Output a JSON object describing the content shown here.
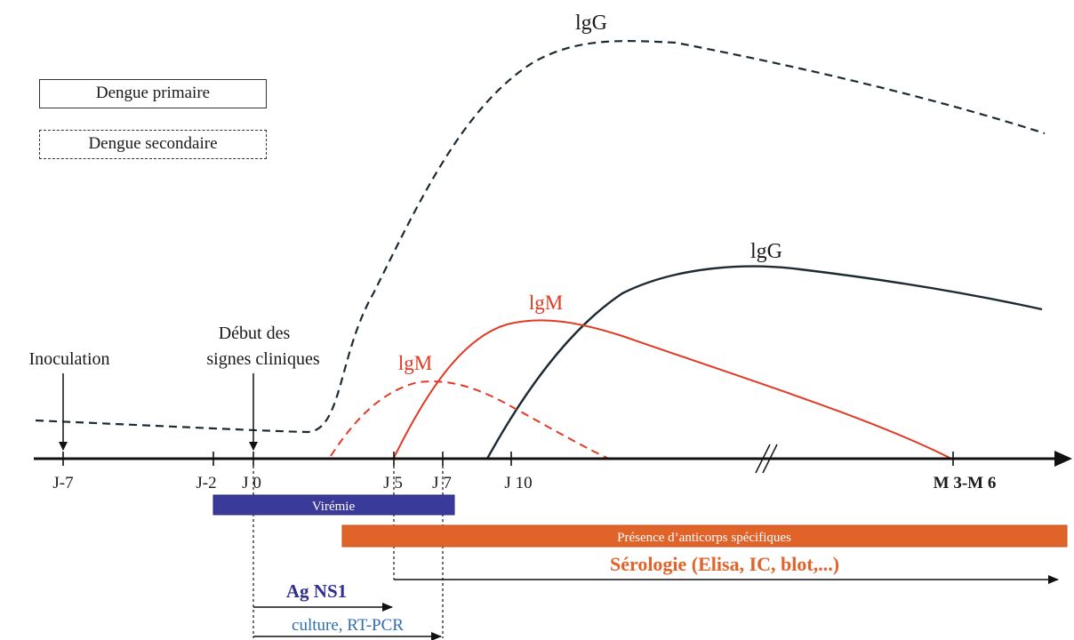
{
  "legend": {
    "primary": "Dengue primaire",
    "secondary": "Dengue secondaire"
  },
  "curves": {
    "igg_secondary": "lgG",
    "igg_primary": "lgG",
    "igm_primary": "lgM",
    "igm_secondary": "lgM"
  },
  "events": {
    "inoculation": "Inoculation",
    "onset_line1": "Début des",
    "onset_line2": "signes cliniques"
  },
  "ticks": [
    "J-7",
    "J-2",
    "J 0",
    "J 5",
    "J 7",
    "J 10",
    "M 3-M 6"
  ],
  "bars": {
    "viremia": "Virémie",
    "antibodies": "Présence d’anticorps spécifiques"
  },
  "methods": {
    "serology": "Sérologie (Elisa, IC, blot,...)",
    "ns1": "Ag NS1",
    "culture": "culture, RT-PCR"
  },
  "colors": {
    "axis": "#111111",
    "igg_line": "#1c2b33",
    "igm_line": "#e03a25",
    "viremia_bar": "#3a3a9a",
    "antibody_bar": "#e0642a",
    "serology_text": "#e0642a",
    "ns1_text": "#2f2f8f",
    "culture_text": "#2d6fb0"
  }
}
